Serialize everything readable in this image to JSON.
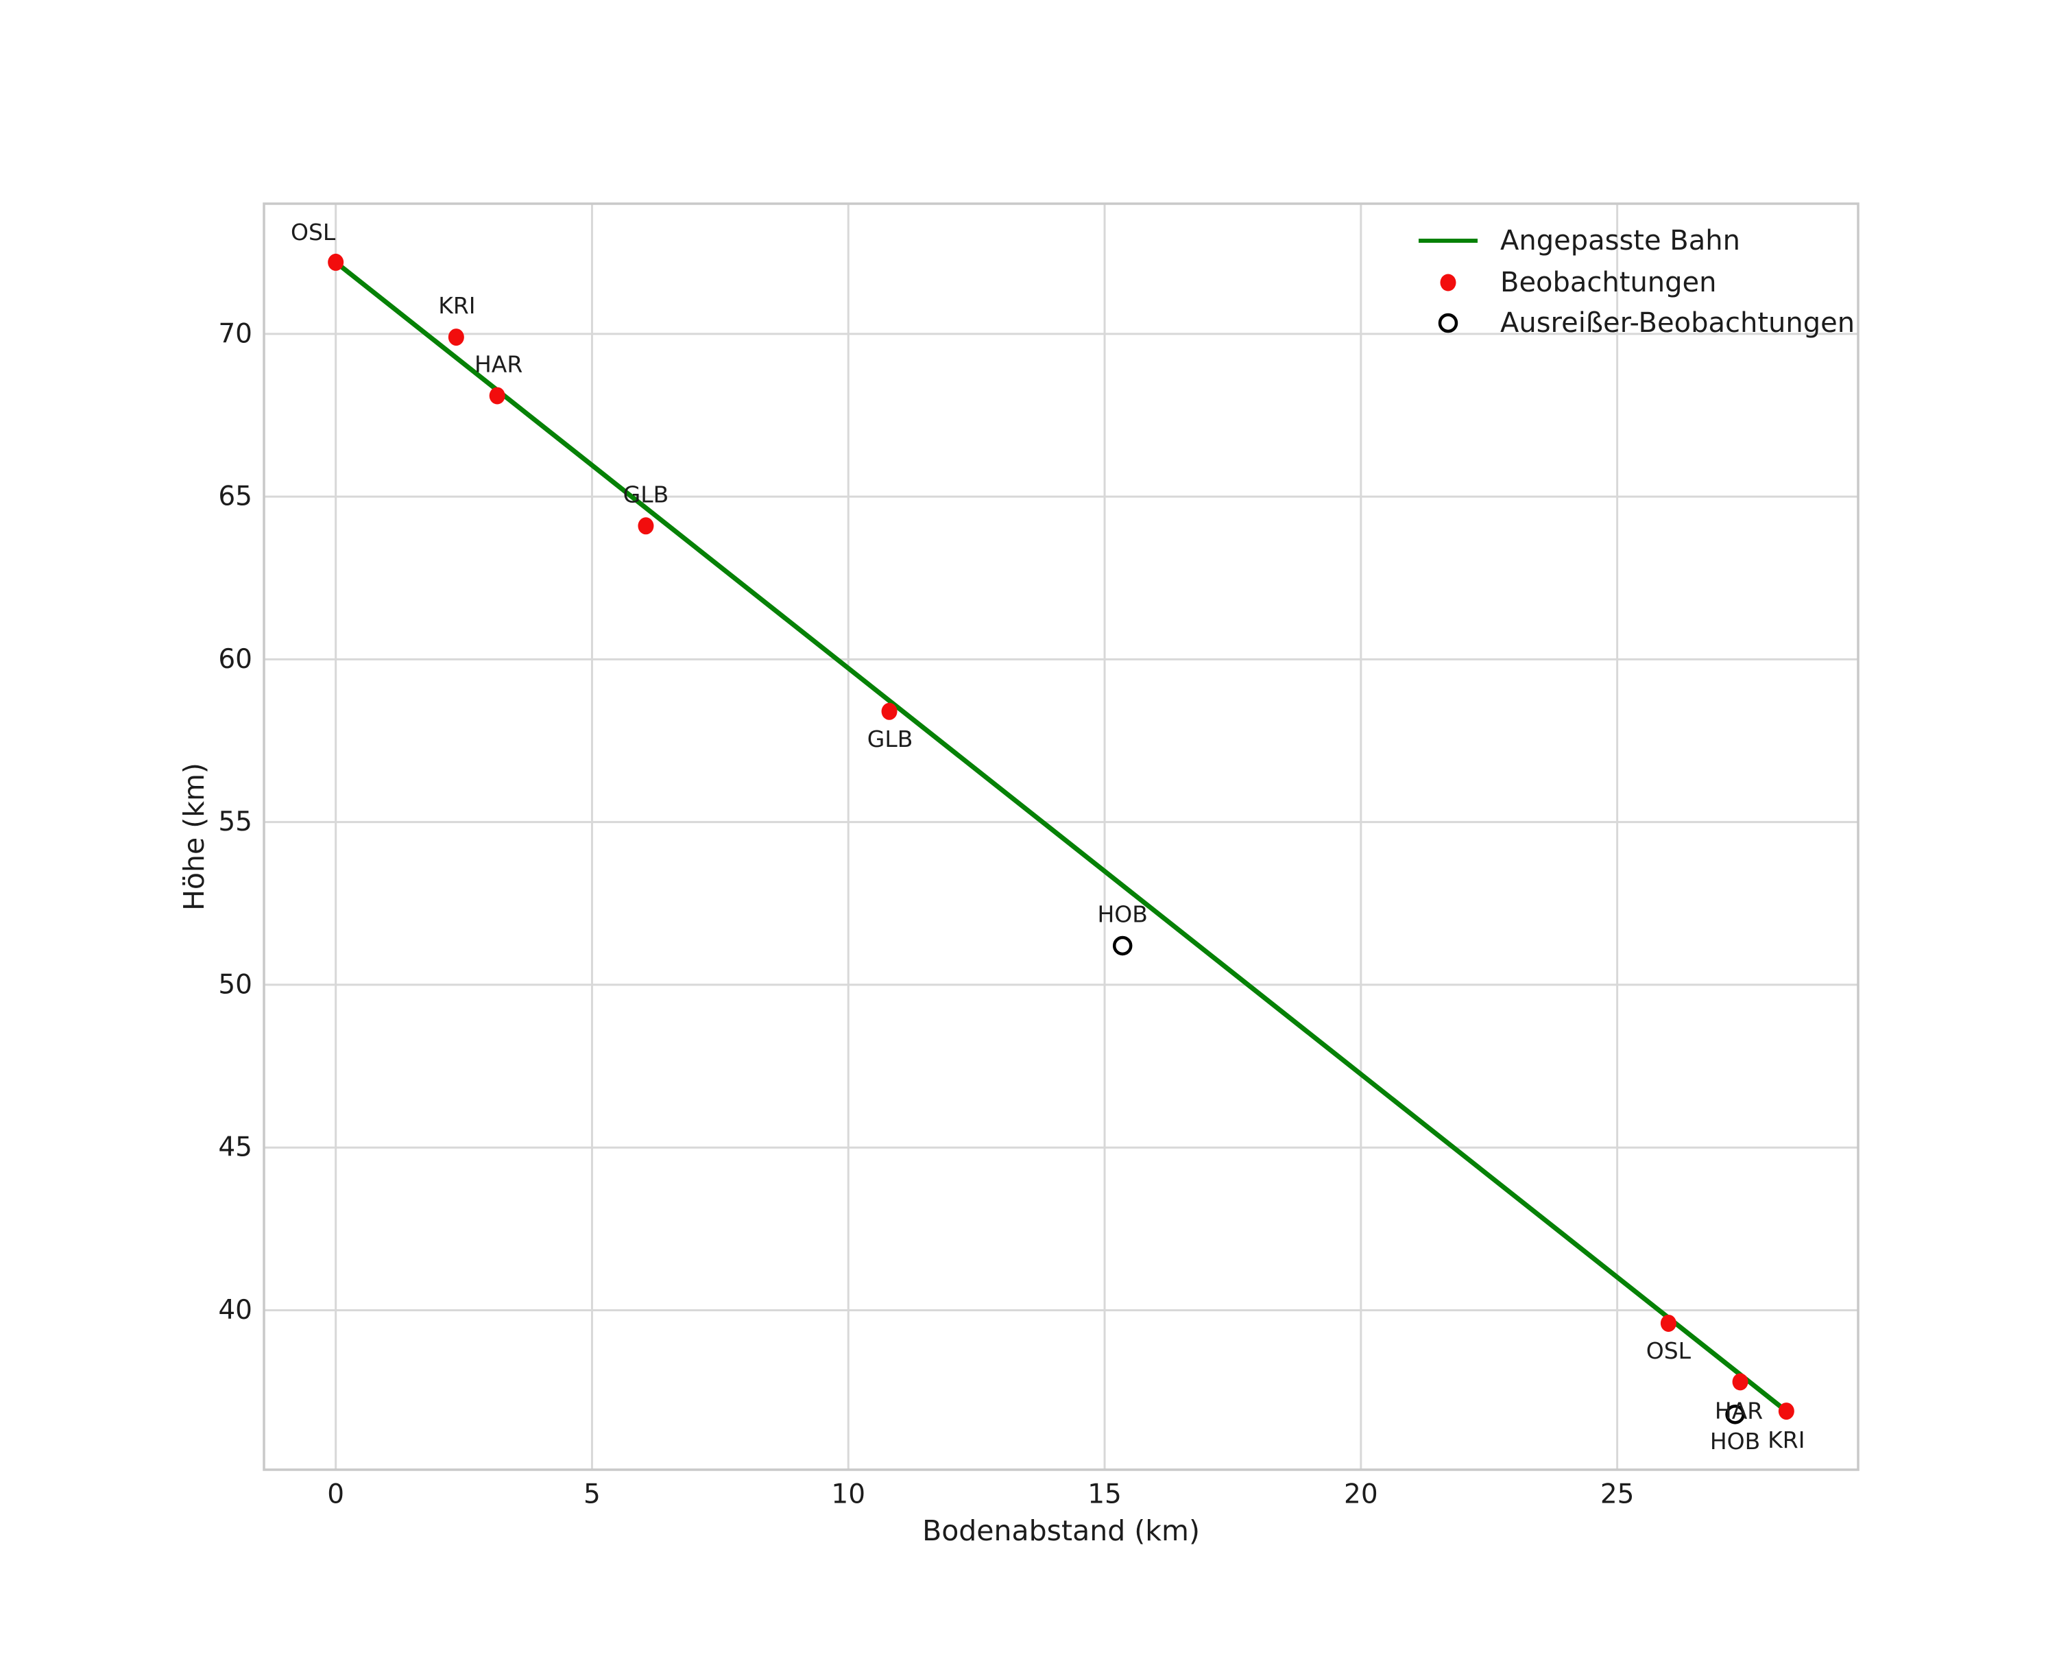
{
  "chart_data": {
    "type": "scatter",
    "title": "",
    "xlabel": "Bodenabstand (km)",
    "ylabel": "Höhe (km)",
    "xlim": [
      -1.4,
      29.7
    ],
    "ylim": [
      35.1,
      74.0
    ],
    "xticks": [
      "0",
      "5",
      "10",
      "15",
      "20",
      "25"
    ],
    "xtick_values": [
      0,
      5,
      10,
      15,
      20,
      25
    ],
    "yticks": [
      "40",
      "45",
      "50",
      "55",
      "60",
      "65",
      "70"
    ],
    "ytick_values": [
      40,
      45,
      50,
      55,
      60,
      65,
      70
    ],
    "grid": true,
    "background": "#ffffff",
    "legend": {
      "position": "upper-right",
      "items": [
        {
          "label": "Angepasste Bahn",
          "marker": "line",
          "color": "#068106"
        },
        {
          "label": "Beobachtungen",
          "marker": "dot",
          "color": "#f20d0d"
        },
        {
          "label": "Ausreißer-Beobachtungen",
          "marker": "open-circle",
          "color": "#000000"
        }
      ]
    },
    "fitted_line": {
      "name": "Angepasste Bahn",
      "color": "#068106",
      "points": [
        {
          "x": 0.0,
          "y": 72.2
        },
        {
          "x": 28.3,
          "y": 36.9
        }
      ]
    },
    "observations": {
      "name": "Beobachtungen",
      "color": "#f20d0d",
      "points": [
        {
          "label": "OSL",
          "x": 0.0,
          "y": 72.2,
          "dx": -33,
          "dy": -44
        },
        {
          "label": "KRI",
          "x": 2.35,
          "y": 69.9,
          "dx": 1,
          "dy": -46
        },
        {
          "label": "HAR",
          "x": 3.15,
          "y": 68.1,
          "dx": 2,
          "dy": -46
        },
        {
          "label": "GLB",
          "x": 6.05,
          "y": 64.1,
          "dx": 0,
          "dy": -46
        },
        {
          "label": "GLB",
          "x": 10.8,
          "y": 58.4,
          "dx": 1,
          "dy": 40
        },
        {
          "label": "OSL",
          "x": 26.0,
          "y": 39.6,
          "dx": 0,
          "dy": 40
        },
        {
          "label": "HAR",
          "x": 27.4,
          "y": 37.8,
          "dx": -2,
          "dy": 42
        },
        {
          "label": "KRI",
          "x": 28.3,
          "y": 36.9,
          "dx": 0,
          "dy": 42
        }
      ]
    },
    "outliers": {
      "name": "Ausreißer-Beobachtungen",
      "color": "#000000",
      "points": [
        {
          "label": "HOB",
          "x": 15.35,
          "y": 51.2,
          "dx": 0,
          "dy": -46
        },
        {
          "label": "HOB",
          "x": 27.3,
          "y": 36.8,
          "dx": 0,
          "dy": 39
        }
      ]
    }
  }
}
